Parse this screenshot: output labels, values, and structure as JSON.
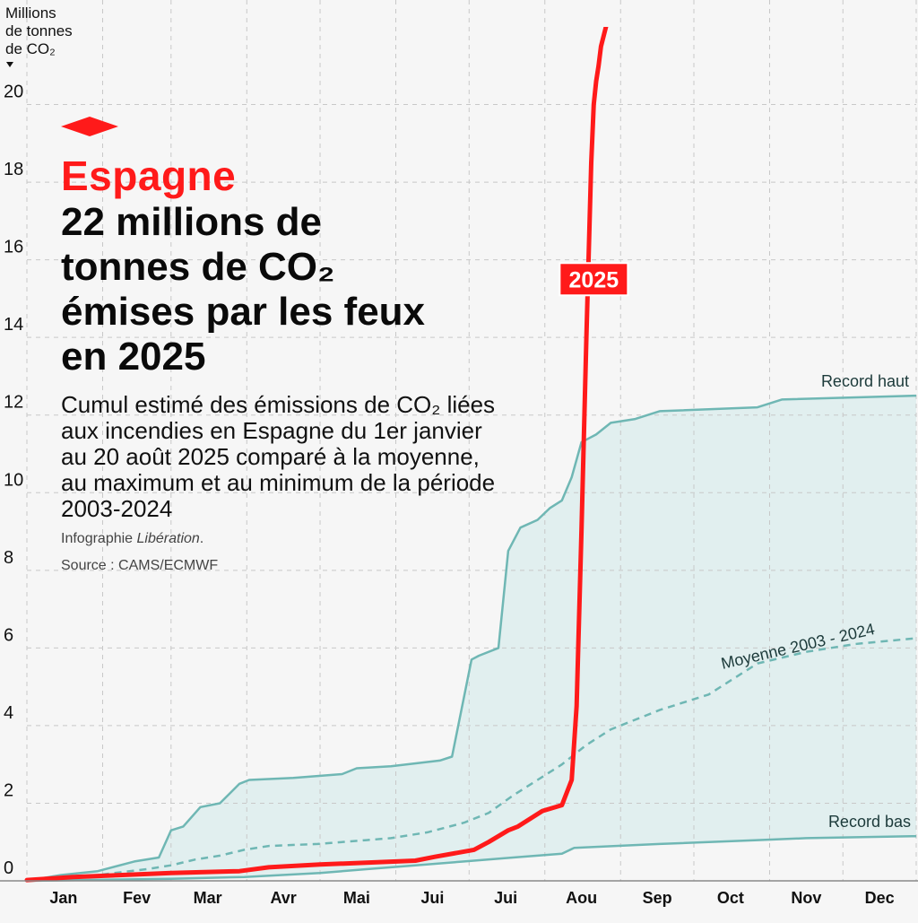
{
  "overlay": {
    "country": "Espagne",
    "headline": "22 millions de tonnes de CO₂ émises par les feux en 2025",
    "subtitle": "Cumul estimé des émissions de CO₂ liées aux incendies en Espagne du 1er janvier au 20 août 2025 comparé à la moyenne, au maximum et au minimum de la période 2003-2024",
    "credit_prefix": "Infographie ",
    "credit_org": "Libération",
    "credit_suffix": ".",
    "source": "Source : CAMS/ECMWF"
  },
  "colors": {
    "background": "#f6f6f6",
    "grid": "#c8c8c8",
    "series_2025": "#ff1a1a",
    "band_fill": "#e1efef",
    "band_line": "#6fb7b4",
    "mean_line": "#6fb7b4",
    "label_text": "#1c3a3a",
    "axis_text": "#111111"
  },
  "chart_data": {
    "type": "line",
    "title": "Espagne",
    "ylabel_lines": [
      "Millions",
      "de tonnes",
      "de CO₂"
    ],
    "xlabel": "",
    "ylim": [
      0,
      22
    ],
    "xlim": [
      1,
      365
    ],
    "yticks": [
      0,
      2,
      4,
      6,
      8,
      10,
      12,
      14,
      16,
      18,
      20
    ],
    "month_ticks": [
      1,
      32,
      60,
      91,
      121,
      152,
      182,
      213,
      244,
      274,
      305,
      335,
      365
    ],
    "month_label_days": [
      16,
      46,
      75,
      106,
      136,
      167,
      197,
      228,
      259,
      289,
      320,
      350
    ],
    "categories": [
      "Jan",
      "Fev",
      "Mar",
      "Avr",
      "Mai",
      "Jui",
      "Jui",
      "Aou",
      "Sep",
      "Oct",
      "Nov",
      "Dec"
    ],
    "series_labels": {
      "current": "2025",
      "max": "Record haut",
      "mean": "Moyenne 2003 - 2024",
      "min": "Record bas"
    },
    "series": [
      {
        "name": "2025",
        "x": [
          1,
          20,
          40,
          60,
          88,
          100,
          121,
          160,
          168,
          184,
          190,
          198,
          202,
          212,
          220,
          224,
          226,
          228,
          230,
          232,
          233,
          234,
          235,
          236,
          238,
          240
        ],
        "values": [
          0.02,
          0.1,
          0.15,
          0.2,
          0.25,
          0.35,
          0.42,
          0.52,
          0.62,
          0.8,
          1.0,
          1.3,
          1.4,
          1.8,
          1.95,
          2.6,
          4.5,
          9.0,
          14.0,
          18.5,
          20.0,
          20.6,
          21.0,
          21.5,
          22.0,
          22.5
        ]
      },
      {
        "name": "Record haut",
        "x": [
          1,
          15,
          30,
          45,
          55,
          60,
          65,
          72,
          80,
          88,
          92,
          110,
          130,
          136,
          150,
          170,
          175,
          183,
          186,
          194,
          198,
          203,
          210,
          215,
          220,
          224,
          228,
          231,
          234,
          240,
          250,
          260,
          300,
          310,
          365
        ],
        "values": [
          0,
          0.15,
          0.25,
          0.5,
          0.6,
          1.3,
          1.4,
          1.9,
          2.0,
          2.5,
          2.6,
          2.65,
          2.75,
          2.9,
          2.95,
          3.1,
          3.2,
          5.7,
          5.8,
          6.0,
          8.5,
          9.1,
          9.3,
          9.6,
          9.8,
          10.4,
          11.3,
          11.4,
          11.5,
          11.8,
          11.9,
          12.1,
          12.2,
          12.4,
          12.5
        ]
      },
      {
        "name": "Moyenne 2003 - 2024",
        "x": [
          1,
          30,
          50,
          60,
          70,
          80,
          90,
          100,
          120,
          140,
          150,
          165,
          180,
          190,
          200,
          210,
          220,
          230,
          240,
          260,
          280,
          290,
          300,
          320,
          340,
          365
        ],
        "values": [
          0,
          0.15,
          0.3,
          0.4,
          0.55,
          0.65,
          0.8,
          0.9,
          0.95,
          1.05,
          1.1,
          1.25,
          1.5,
          1.75,
          2.2,
          2.6,
          3.0,
          3.5,
          3.9,
          4.4,
          4.8,
          5.2,
          5.6,
          5.9,
          6.1,
          6.25
        ]
      },
      {
        "name": "Record bas",
        "x": [
          1,
          60,
          90,
          121,
          140,
          160,
          180,
          200,
          220,
          225,
          260,
          300,
          320,
          365
        ],
        "values": [
          0,
          0.05,
          0.1,
          0.2,
          0.3,
          0.4,
          0.5,
          0.6,
          0.7,
          0.85,
          0.95,
          1.05,
          1.1,
          1.15
        ]
      }
    ]
  }
}
